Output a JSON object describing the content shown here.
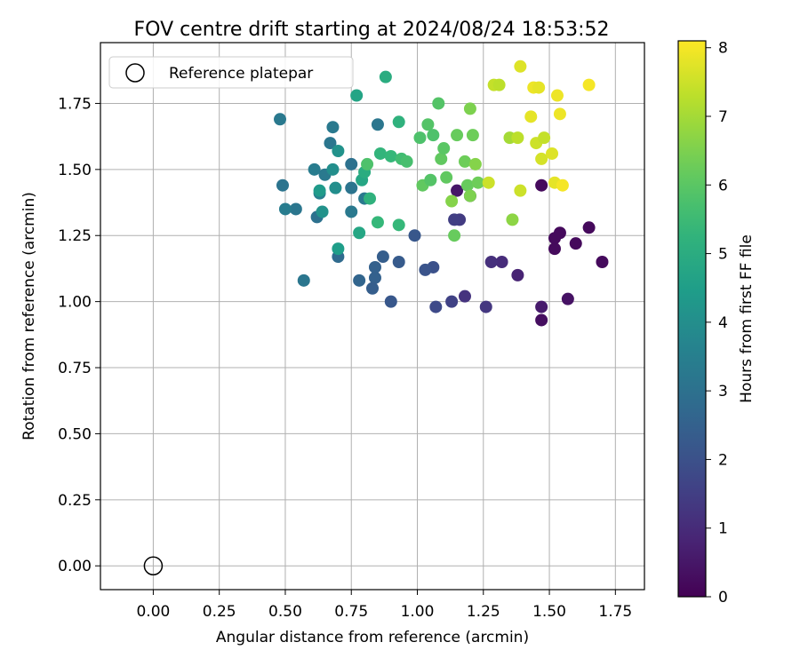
{
  "chart_data": {
    "type": "scatter",
    "title": "FOV centre drift starting at 2024/08/24 18:53:52",
    "xlabel": "Angular distance from reference (arcmin)",
    "ylabel": "Rotation from reference (arcmin)",
    "xlim": [
      -0.2,
      1.86
    ],
    "ylim": [
      -0.09,
      1.98
    ],
    "xticks": [
      "0.00",
      "0.25",
      "0.50",
      "0.75",
      "1.00",
      "1.25",
      "1.50",
      "1.75"
    ],
    "yticks": [
      "0.00",
      "0.25",
      "0.50",
      "0.75",
      "1.00",
      "1.25",
      "1.50",
      "1.75"
    ],
    "grid": true,
    "legend": {
      "placement": "top-left",
      "entries": [
        "Reference platepar"
      ]
    },
    "reference_point": {
      "x": 0.0,
      "y": 0.0
    },
    "colorbar": {
      "label": "Hours from first FF file",
      "range": [
        0,
        8.1
      ],
      "ticks": [
        "0",
        "1",
        "2",
        "3",
        "4",
        "5",
        "6",
        "7",
        "8"
      ],
      "colormap": "viridis"
    },
    "points": [
      [
        1.47,
        1.44,
        0.2
      ],
      [
        1.52,
        1.2,
        0.2
      ],
      [
        1.52,
        1.24,
        0.2
      ],
      [
        1.54,
        1.26,
        0.2
      ],
      [
        1.6,
        1.22,
        0.2
      ],
      [
        1.65,
        1.28,
        0.2
      ],
      [
        1.7,
        1.15,
        0.2
      ],
      [
        1.47,
        0.93,
        0.3
      ],
      [
        1.57,
        1.01,
        0.4
      ],
      [
        1.47,
        0.98,
        0.6
      ],
      [
        1.38,
        1.1,
        0.8
      ],
      [
        1.32,
        1.15,
        1.0
      ],
      [
        1.28,
        1.15,
        1.1
      ],
      [
        1.26,
        0.98,
        1.3
      ],
      [
        1.18,
        1.02,
        1.2
      ],
      [
        1.15,
        1.42,
        0.5
      ],
      [
        1.2,
        1.4,
        0.6
      ],
      [
        1.16,
        1.31,
        1.4
      ],
      [
        1.14,
        1.31,
        1.5
      ],
      [
        1.13,
        1.0,
        1.6
      ],
      [
        1.07,
        0.98,
        1.8
      ],
      [
        1.06,
        1.13,
        2.0
      ],
      [
        1.03,
        1.12,
        2.1
      ],
      [
        0.99,
        1.25,
        2.2
      ],
      [
        0.93,
        1.15,
        2.3
      ],
      [
        0.9,
        1.0,
        2.2
      ],
      [
        0.87,
        1.17,
        2.4
      ],
      [
        0.84,
        1.09,
        2.5
      ],
      [
        0.84,
        1.13,
        2.5
      ],
      [
        0.83,
        1.05,
        2.4
      ],
      [
        0.78,
        1.08,
        2.6
      ],
      [
        0.7,
        1.17,
        2.8
      ],
      [
        0.57,
        1.08,
        3.2
      ],
      [
        0.62,
        1.32,
        3.0
      ],
      [
        0.54,
        1.35,
        3.2
      ],
      [
        0.49,
        1.44,
        3.1
      ],
      [
        0.5,
        1.35,
        3.4
      ],
      [
        0.48,
        1.69,
        3.3
      ],
      [
        0.63,
        1.41,
        3.5
      ],
      [
        0.61,
        1.5,
        3.4
      ],
      [
        0.65,
        1.48,
        3.3
      ],
      [
        0.67,
        1.6,
        3.2
      ],
      [
        0.68,
        1.66,
        3.3
      ],
      [
        0.75,
        1.43,
        3.1
      ],
      [
        0.75,
        1.52,
        3.0
      ],
      [
        0.75,
        1.34,
        3.3
      ],
      [
        0.8,
        1.39,
        3.3
      ],
      [
        0.85,
        1.67,
        3.2
      ],
      [
        0.68,
        1.5,
        4.0
      ],
      [
        0.69,
        1.43,
        4.0
      ],
      [
        0.7,
        1.57,
        4.1
      ],
      [
        0.64,
        1.34,
        4.1
      ],
      [
        0.63,
        1.42,
        4.4
      ],
      [
        0.7,
        1.2,
        4.5
      ],
      [
        0.78,
        1.26,
        4.8
      ],
      [
        0.77,
        1.78,
        4.7
      ],
      [
        0.79,
        1.46,
        4.8
      ],
      [
        0.8,
        1.49,
        5.0
      ],
      [
        0.82,
        1.39,
        5.2
      ],
      [
        0.85,
        1.3,
        5.4
      ],
      [
        0.86,
        1.56,
        5.3
      ],
      [
        0.88,
        1.85,
        5.0
      ],
      [
        0.9,
        1.55,
        5.4
      ],
      [
        0.93,
        1.68,
        5.2
      ],
      [
        0.93,
        1.29,
        5.4
      ],
      [
        0.94,
        1.54,
        5.6
      ],
      [
        0.96,
        1.53,
        5.7
      ],
      [
        0.81,
        1.52,
        5.8
      ],
      [
        1.01,
        1.62,
        5.8
      ],
      [
        1.02,
        1.44,
        6.1
      ],
      [
        1.04,
        1.67,
        5.9
      ],
      [
        1.05,
        1.46,
        5.9
      ],
      [
        1.06,
        1.63,
        5.8
      ],
      [
        1.08,
        1.75,
        5.9
      ],
      [
        1.09,
        1.54,
        6.1
      ],
      [
        1.1,
        1.58,
        6.0
      ],
      [
        1.11,
        1.47,
        6.1
      ],
      [
        1.13,
        1.38,
        6.6
      ],
      [
        1.14,
        1.25,
        6.2
      ],
      [
        1.15,
        1.63,
        6.2
      ],
      [
        1.18,
        1.53,
        6.3
      ],
      [
        1.19,
        1.44,
        6.2
      ],
      [
        1.2,
        1.4,
        6.5
      ],
      [
        1.2,
        1.73,
        6.5
      ],
      [
        1.21,
        1.63,
        6.3
      ],
      [
        1.22,
        1.52,
        6.6
      ],
      [
        1.23,
        1.45,
        6.3
      ],
      [
        1.27,
        1.45,
        7.5
      ],
      [
        1.29,
        1.82,
        7.4
      ],
      [
        1.31,
        1.82,
        7.3
      ],
      [
        1.35,
        1.62,
        7.0
      ],
      [
        1.36,
        1.31,
        6.7
      ],
      [
        1.38,
        1.62,
        7.3
      ],
      [
        1.39,
        1.89,
        7.7
      ],
      [
        1.39,
        1.42,
        7.5
      ],
      [
        1.43,
        1.7,
        7.8
      ],
      [
        1.44,
        1.81,
        7.9
      ],
      [
        1.45,
        1.6,
        7.5
      ],
      [
        1.46,
        1.81,
        7.8
      ],
      [
        1.47,
        1.54,
        7.6
      ],
      [
        1.48,
        1.62,
        7.4
      ],
      [
        1.51,
        1.56,
        7.7
      ],
      [
        1.52,
        1.45,
        7.8
      ],
      [
        1.53,
        1.78,
        7.9
      ],
      [
        1.54,
        1.71,
        7.9
      ],
      [
        1.55,
        1.44,
        8.0
      ],
      [
        1.65,
        1.82,
        8.0
      ]
    ]
  }
}
